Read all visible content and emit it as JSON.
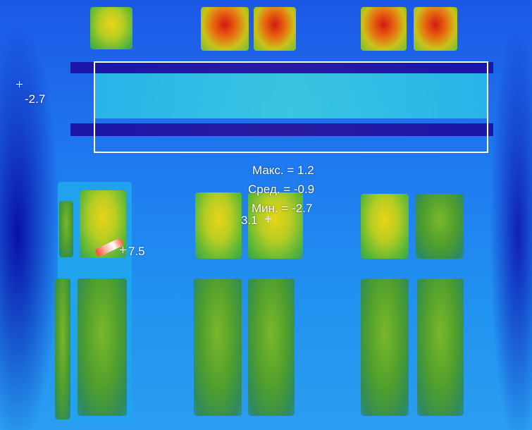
{
  "image": {
    "description": "Thermal image of building facade with windows and ROI box",
    "roi_stats": {
      "max": "Макс. = 1.2",
      "avg": "Сред. = -0.9",
      "min": "Мин. = -2.7"
    },
    "point_labels": {
      "left_point": "-2.7",
      "hot_point": "7.5",
      "center_point": "3.1"
    },
    "palette": {
      "cold": "#1a16a8",
      "cool": "#1f7bf0",
      "mid": "#2ac0e8",
      "warm": "#e8d418",
      "hot": "#d21a10"
    }
  }
}
